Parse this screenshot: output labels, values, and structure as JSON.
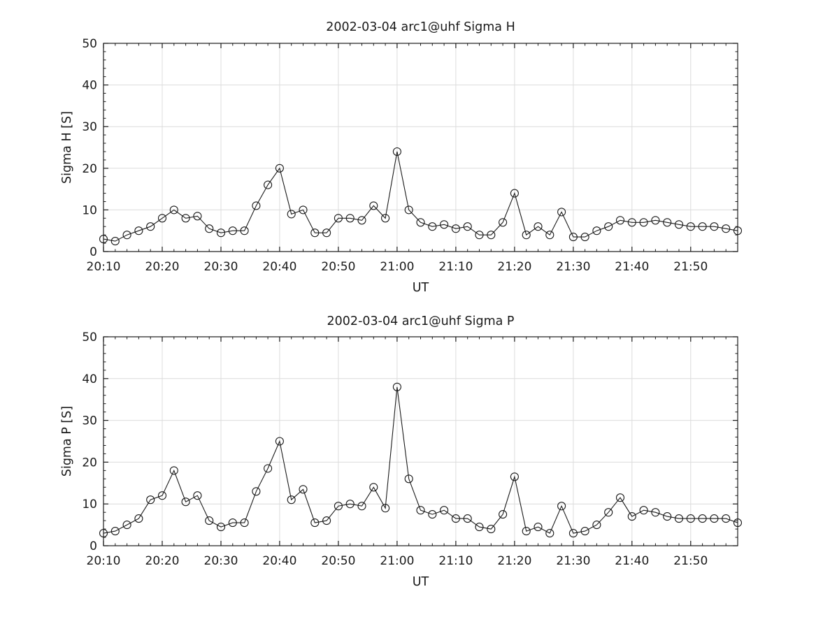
{
  "chart_data": [
    {
      "type": "line",
      "title": "2002-03-04  arc1@uhf Sigma H",
      "xlabel": "UT",
      "ylabel": "Sigma H [S]",
      "ylim": [
        0,
        50
      ],
      "yticks": [
        0,
        10,
        20,
        30,
        40,
        50
      ],
      "xticks": [
        "20:10",
        "20:20",
        "20:30",
        "20:40",
        "20:50",
        "21:00",
        "21:10",
        "21:20",
        "21:30",
        "21:40",
        "21:50"
      ],
      "grid": true,
      "legend": "none",
      "marker": "open-circle",
      "line_color": "#1a1a1a",
      "x": [
        "20:10",
        "20:12",
        "20:14",
        "20:16",
        "20:18",
        "20:20",
        "20:22",
        "20:24",
        "20:26",
        "20:28",
        "20:30",
        "20:32",
        "20:34",
        "20:36",
        "20:38",
        "20:40",
        "20:42",
        "20:44",
        "20:46",
        "20:48",
        "20:50",
        "20:52",
        "20:54",
        "20:56",
        "20:58",
        "21:00",
        "21:02",
        "21:04",
        "21:06",
        "21:08",
        "21:10",
        "21:12",
        "21:14",
        "21:16",
        "21:18",
        "21:20",
        "21:22",
        "21:24",
        "21:26",
        "21:28",
        "21:30",
        "21:32",
        "21:34",
        "21:36",
        "21:38",
        "21:40",
        "21:42",
        "21:44",
        "21:46",
        "21:48",
        "21:50",
        "21:52",
        "21:54",
        "21:56",
        "21:58"
      ],
      "values": [
        3,
        2.5,
        4,
        5,
        6,
        8,
        10,
        8,
        8.5,
        5.5,
        4.5,
        5,
        5,
        11,
        16,
        20,
        9,
        10,
        4.5,
        4.5,
        8,
        8,
        7.5,
        11,
        8,
        24,
        10,
        7,
        6,
        6.5,
        5.5,
        6,
        4,
        4,
        7,
        14,
        4,
        6,
        4,
        9.5,
        3.5,
        3.5,
        5,
        6,
        7.5,
        7,
        7,
        7.5,
        7,
        6.5,
        6,
        6,
        6,
        5.5,
        5
      ]
    },
    {
      "type": "line",
      "title": "2002-03-04  arc1@uhf Sigma P",
      "xlabel": "UT",
      "ylabel": "Sigma P [S]",
      "ylim": [
        0,
        50
      ],
      "yticks": [
        0,
        10,
        20,
        30,
        40,
        50
      ],
      "xticks": [
        "20:10",
        "20:20",
        "20:30",
        "20:40",
        "20:50",
        "21:00",
        "21:10",
        "21:20",
        "21:30",
        "21:40",
        "21:50"
      ],
      "grid": true,
      "legend": "none",
      "marker": "open-circle",
      "line_color": "#1a1a1a",
      "x": [
        "20:10",
        "20:12",
        "20:14",
        "20:16",
        "20:18",
        "20:20",
        "20:22",
        "20:24",
        "20:26",
        "20:28",
        "20:30",
        "20:32",
        "20:34",
        "20:36",
        "20:38",
        "20:40",
        "20:42",
        "20:44",
        "20:46",
        "20:48",
        "20:50",
        "20:52",
        "20:54",
        "20:56",
        "20:58",
        "21:00",
        "21:02",
        "21:04",
        "21:06",
        "21:08",
        "21:10",
        "21:12",
        "21:14",
        "21:16",
        "21:18",
        "21:20",
        "21:22",
        "21:24",
        "21:26",
        "21:28",
        "21:30",
        "21:32",
        "21:34",
        "21:36",
        "21:38",
        "21:40",
        "21:42",
        "21:44",
        "21:46",
        "21:48",
        "21:50",
        "21:52",
        "21:54",
        "21:56",
        "21:58"
      ],
      "values": [
        3,
        3.5,
        5,
        6.5,
        11,
        12,
        18,
        10.5,
        12,
        6,
        4.5,
        5.5,
        5.5,
        13,
        18.5,
        25,
        11,
        13.5,
        5.5,
        6,
        9.5,
        10,
        9.5,
        14,
        9,
        38,
        16,
        8.5,
        7.5,
        8.5,
        6.5,
        6.5,
        4.5,
        4,
        7.5,
        16.5,
        3.5,
        4.5,
        3,
        9.5,
        3,
        3.5,
        5,
        8,
        11.5,
        7,
        8.5,
        8,
        7,
        6.5,
        6.5,
        6.5,
        6.5,
        6.5,
        5.5
      ]
    }
  ],
  "colors": {
    "axis": "#1a1a1a",
    "grid": "#dcdcdc",
    "background": "#ffffff"
  }
}
